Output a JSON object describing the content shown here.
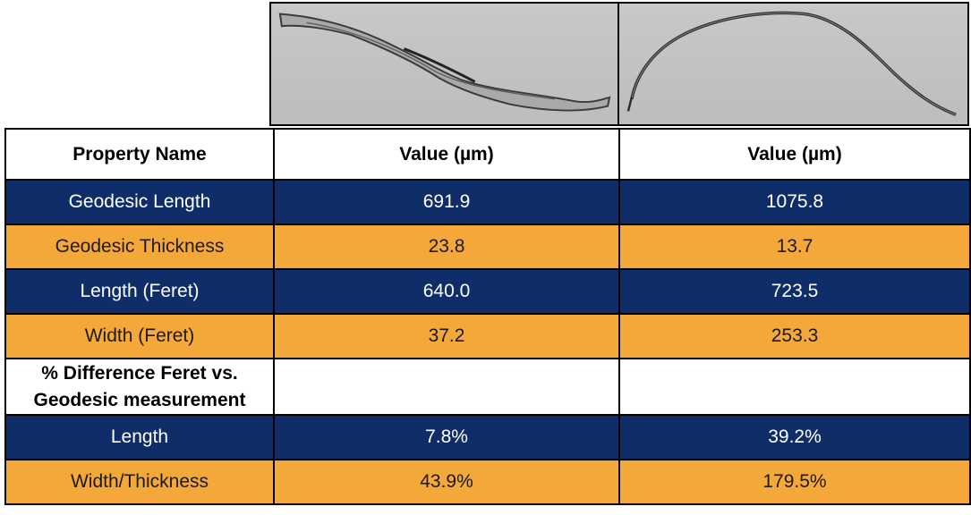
{
  "images": [
    {
      "description_icon": "micrograph-fiber-straight-icon"
    },
    {
      "description_icon": "micrograph-fiber-curved-icon"
    }
  ],
  "table": {
    "header": [
      "Property Name",
      "Value (µm)",
      "Value (µm)"
    ],
    "rows": [
      {
        "label": "Geodesic Length",
        "v1": "691.9",
        "v2": "1075.8",
        "style": "navy"
      },
      {
        "label": "Geodesic Thickness",
        "v1": "23.8",
        "v2": "13.7",
        "style": "orange"
      },
      {
        "label": "Length (Feret)",
        "v1": "640.0",
        "v2": "723.5",
        "style": "navy"
      },
      {
        "label": "Width (Feret)",
        "v1": "37.2",
        "v2": "253.3",
        "style": "orange"
      }
    ],
    "section_label_line1": "% Difference Feret vs.",
    "section_label_line2": "Geodesic measurement",
    "diff_rows": [
      {
        "label": "Length",
        "v1": "7.8%",
        "v2": "39.2%",
        "style": "navy"
      },
      {
        "label": "Width/Thickness",
        "v1": "43.9%",
        "v2": "179.5%",
        "style": "orange"
      }
    ]
  },
  "colors": {
    "navy": "#0f2d69",
    "orange": "#f5a83a"
  }
}
